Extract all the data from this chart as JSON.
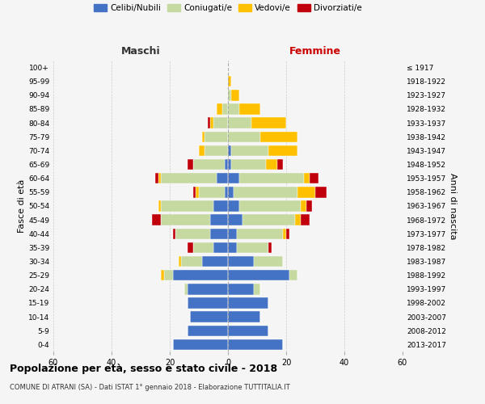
{
  "age_groups": [
    "0-4",
    "5-9",
    "10-14",
    "15-19",
    "20-24",
    "25-29",
    "30-34",
    "35-39",
    "40-44",
    "45-49",
    "50-54",
    "55-59",
    "60-64",
    "65-69",
    "70-74",
    "75-79",
    "80-84",
    "85-89",
    "90-94",
    "95-99",
    "100+"
  ],
  "birth_years": [
    "2013-2017",
    "2008-2012",
    "2003-2007",
    "1998-2002",
    "1993-1997",
    "1988-1992",
    "1983-1987",
    "1978-1982",
    "1973-1977",
    "1968-1972",
    "1963-1967",
    "1958-1962",
    "1953-1957",
    "1948-1952",
    "1943-1947",
    "1938-1942",
    "1933-1937",
    "1928-1932",
    "1923-1927",
    "1918-1922",
    "≤ 1917"
  ],
  "males": {
    "celibi": [
      19,
      14,
      13,
      14,
      14,
      19,
      9,
      5,
      6,
      6,
      5,
      1,
      4,
      1,
      0,
      0,
      0,
      0,
      0,
      0,
      0
    ],
    "coniugati": [
      0,
      0,
      0,
      0,
      1,
      3,
      7,
      7,
      12,
      17,
      18,
      9,
      19,
      11,
      8,
      8,
      5,
      2,
      0,
      0,
      0
    ],
    "vedovi": [
      0,
      0,
      0,
      0,
      0,
      1,
      1,
      0,
      0,
      0,
      1,
      1,
      1,
      0,
      2,
      1,
      1,
      2,
      0,
      0,
      0
    ],
    "divorziati": [
      0,
      0,
      0,
      0,
      0,
      0,
      0,
      2,
      1,
      3,
      0,
      1,
      1,
      2,
      0,
      0,
      1,
      0,
      0,
      0,
      0
    ]
  },
  "females": {
    "nubili": [
      19,
      14,
      11,
      14,
      9,
      21,
      9,
      3,
      3,
      5,
      4,
      2,
      4,
      1,
      1,
      0,
      0,
      0,
      0,
      0,
      0
    ],
    "coniugate": [
      0,
      0,
      0,
      0,
      2,
      3,
      10,
      11,
      16,
      18,
      21,
      22,
      22,
      12,
      13,
      11,
      8,
      4,
      1,
      0,
      0
    ],
    "vedove": [
      0,
      0,
      0,
      0,
      0,
      0,
      0,
      0,
      1,
      2,
      2,
      6,
      2,
      4,
      10,
      13,
      12,
      7,
      3,
      1,
      0
    ],
    "divorziate": [
      0,
      0,
      0,
      0,
      0,
      0,
      0,
      1,
      1,
      3,
      2,
      4,
      3,
      2,
      0,
      0,
      0,
      0,
      0,
      0,
      0
    ]
  },
  "colors": {
    "celibi": "#4472c4",
    "coniugati": "#c5d9a0",
    "vedovi": "#ffc000",
    "divorziati": "#c0000b"
  },
  "title_main": "Popolazione per età, sesso e stato civile - 2018",
  "title_sub": "COMUNE DI ATRANI (SA) - Dati ISTAT 1° gennaio 2018 - Elaborazione TUTTITALIA.IT",
  "xlabel_left": "Maschi",
  "xlabel_right": "Femmine",
  "ylabel_left": "Fasce di età",
  "ylabel_right": "Anni di nascita",
  "xlim": 60,
  "background_color": "#f5f5f5",
  "grid_color": "#cccccc",
  "legend_labels": [
    "Celibi/Nubili",
    "Coniugati/e",
    "Vedovi/e",
    "Divorziati/e"
  ]
}
